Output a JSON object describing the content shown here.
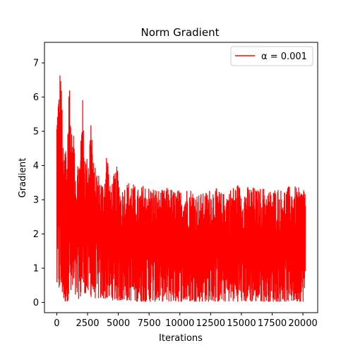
{
  "chart_data": {
    "type": "line",
    "title": "Norm Gradient",
    "xlabel": "Iterations",
    "ylabel": "Gradient",
    "xlim": [
      -1000,
      21200
    ],
    "ylim": [
      -0.3,
      7.6
    ],
    "xticks": [
      0,
      2500,
      5000,
      7500,
      10000,
      12500,
      15000,
      17500,
      20000
    ],
    "xtick_labels": [
      "0",
      "2500",
      "5000",
      "7500",
      "10000",
      "12500",
      "15000",
      "17500",
      "20000"
    ],
    "yticks": [
      0,
      1,
      2,
      3,
      4,
      5,
      6,
      7
    ],
    "ytick_labels": [
      "0",
      "1",
      "2",
      "3",
      "4",
      "5",
      "6",
      "7"
    ],
    "grid": false,
    "legend_position": "top-right",
    "series": [
      {
        "name": "α = 0.001",
        "legend_label": "α = 0.001",
        "color": "#ff0000",
        "x": [
          0,
          100,
          200,
          300,
          350,
          450,
          550,
          700,
          800,
          900,
          1050,
          1150,
          1300,
          1450,
          1600,
          1750,
          1900,
          2050,
          2200,
          2400,
          2600,
          2800,
          3000,
          3200,
          3500,
          3800,
          4100,
          4300,
          4600,
          4900,
          5200,
          5600,
          6000,
          6400,
          6700,
          7100,
          7500,
          7900,
          8300,
          8700,
          9100,
          9500,
          9900,
          10300,
          10700,
          11100,
          11500,
          11900,
          12300,
          12700,
          13100,
          13500,
          13900,
          14300,
          14700,
          15100,
          15500,
          15900,
          16300,
          16700,
          17100,
          17500,
          17900,
          18300,
          18700,
          19100,
          19500,
          19900,
          20150,
          20200
        ],
        "max": [
          5.6,
          6.2,
          6.3,
          7.25,
          6.5,
          5.8,
          4.0,
          5.0,
          4.3,
          5.5,
          7.1,
          5.2,
          4.8,
          5.0,
          3.6,
          4.5,
          4.2,
          6.6,
          4.9,
          4.2,
          4.5,
          5.7,
          3.9,
          4.0,
          3.7,
          3.5,
          4.7,
          3.4,
          3.7,
          4.0,
          3.3,
          3.5,
          3.6,
          3.4,
          3.3,
          3.5,
          3.4,
          3.4,
          3.3,
          3.3,
          3.4,
          3.3,
          3.3,
          3.3,
          3.4,
          3.3,
          3.2,
          3.2,
          3.3,
          3.4,
          3.3,
          3.2,
          3.3,
          3.4,
          3.5,
          3.3,
          3.4,
          3.4,
          3.3,
          3.4,
          3.3,
          3.3,
          3.4,
          3.3,
          3.4,
          3.4,
          3.4,
          3.3,
          3.65,
          3.0
        ],
        "min": [
          0.3,
          0.3,
          0.3,
          0.3,
          0.1,
          0.2,
          0.0,
          0.0,
          0.0,
          0.05,
          0.1,
          0.1,
          0.1,
          0.1,
          0.05,
          0.1,
          0.1,
          0.3,
          0.3,
          0.2,
          0.2,
          0.15,
          0.15,
          0.1,
          0.1,
          0.1,
          0.1,
          0.1,
          0.05,
          0.05,
          0.05,
          0.05,
          0.05,
          0.02,
          0.02,
          0.02,
          0.02,
          0.02,
          0.02,
          0.02,
          0.02,
          0.02,
          0.02,
          0.02,
          0.02,
          0.02,
          0.02,
          0.02,
          0.02,
          0.02,
          0.02,
          0.02,
          0.02,
          0.02,
          0.02,
          0.02,
          0.02,
          0.02,
          0.02,
          0.02,
          0.02,
          0.02,
          0.02,
          0.02,
          0.02,
          0.02,
          0.02,
          0.02,
          0.02,
          0.02
        ]
      }
    ]
  }
}
